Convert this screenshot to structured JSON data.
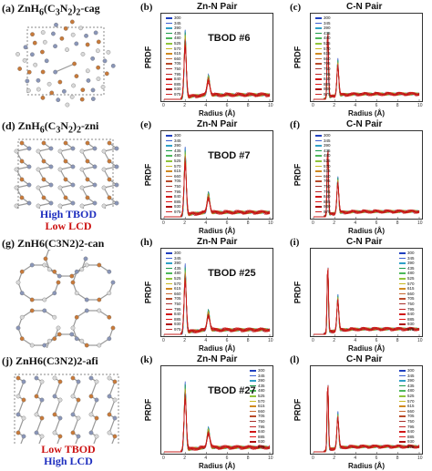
{
  "rows": [
    {
      "struct_label": "(a) ZnH6(C3N2)2-cag",
      "note": [],
      "left": {
        "label": "(b)",
        "title": "Zn-N Pair",
        "tbod": "TBOD #6"
      },
      "right": {
        "label": "(c)",
        "title": "C-N Pair"
      }
    },
    {
      "struct_label": "(d) ZnH6(C3N2)2-zni",
      "note": [
        {
          "text": "High TBOD",
          "color": "blue"
        },
        {
          "text": "Low LCD",
          "color": "red"
        }
      ],
      "left": {
        "label": "(e)",
        "title": "Zn-N Pair",
        "tbod": "TBOD #7"
      },
      "right": {
        "label": "(f)",
        "title": "C-N Pair"
      }
    },
    {
      "struct_label": "(g) ZnH6(C3N2)2-can",
      "note": [],
      "left": {
        "label": "(h)",
        "title": "Zn-N Pair",
        "tbod": "TBOD #25"
      },
      "right": {
        "label": "(i)",
        "title": "C-N Pair"
      }
    },
    {
      "struct_label": "(j) ZnH6(C3N2)2-afi",
      "note": [
        {
          "text": "Low TBOD",
          "color": "red"
        },
        {
          "text": "High LCD",
          "color": "blue"
        }
      ],
      "left": {
        "label": "(k)",
        "title": "Zn-N Pair",
        "tbod": "TBOD #27"
      },
      "right": {
        "label": "(l)",
        "title": "C-N Pair"
      }
    }
  ],
  "common": {
    "ylabel": "PRDF",
    "xlabel": "Radius (Å)",
    "xticks": [
      "0",
      "2",
      "4",
      "6",
      "8",
      "10"
    ]
  },
  "legend_temps": [
    "300",
    "345",
    "390",
    "435",
    "480",
    "525",
    "570",
    "615",
    "660",
    "705",
    "750",
    "795",
    "840",
    "885",
    "930",
    "975"
  ],
  "legend_colors": [
    "#1f3fbf",
    "#3a5fd0",
    "#2fa0c8",
    "#1a9a4a",
    "#4cb85a",
    "#8fc43a",
    "#c8b820",
    "#d08a20",
    "#c86a30",
    "#b84a2a",
    "#a8302a",
    "#c02020",
    "#d01818",
    "#e01010",
    "#b01010",
    "#cc2222"
  ],
  "chart_data": [
    {
      "type": "line",
      "title": "Zn-N Pair",
      "xlabel": "Radius (Å)",
      "ylabel": "PRDF",
      "xlim": [
        0,
        10
      ],
      "peaks": [
        {
          "x": 2.0,
          "y_min": 11,
          "y_max": 15
        },
        {
          "x": 4.2,
          "y_min": 3,
          "y_max": 4.5
        }
      ]
    },
    {
      "type": "line",
      "title": "C-N Pair",
      "xlabel": "Radius (Å)",
      "ylabel": "PRDF",
      "xlim": [
        0,
        10
      ],
      "peaks": [
        {
          "x": 1.35,
          "y_min": 16,
          "y_max": 18
        },
        {
          "x": 2.3,
          "y_min": 7,
          "y_max": 9
        }
      ]
    }
  ]
}
